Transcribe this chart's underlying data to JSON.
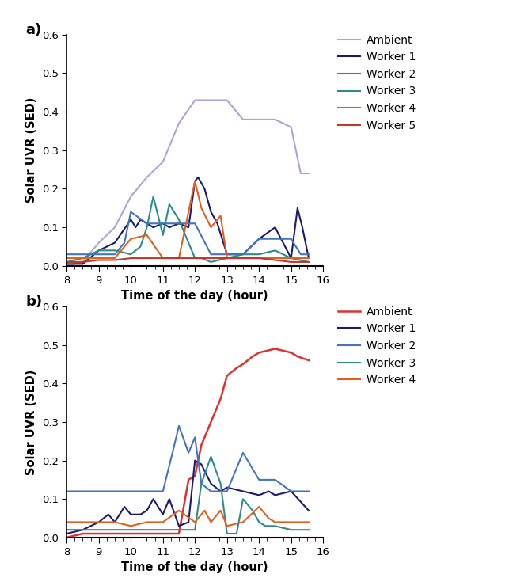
{
  "panel_a": {
    "ambient": {
      "x": [
        8.0,
        8.5,
        9.0,
        9.5,
        10.0,
        10.5,
        11.0,
        11.5,
        12.0,
        12.25,
        12.5,
        13.0,
        13.5,
        14.0,
        14.5,
        15.0,
        15.3,
        15.55
      ],
      "y": [
        0.0,
        0.01,
        0.06,
        0.1,
        0.18,
        0.23,
        0.27,
        0.37,
        0.43,
        0.43,
        0.43,
        0.43,
        0.38,
        0.38,
        0.38,
        0.36,
        0.24,
        0.24
      ],
      "color": "#b3a0d4",
      "label": "Ambient",
      "lw": 1.5
    },
    "worker1": {
      "x": [
        8.0,
        8.5,
        9.0,
        9.5,
        10.0,
        10.15,
        10.3,
        10.5,
        10.7,
        11.0,
        11.2,
        11.5,
        11.8,
        12.0,
        12.1,
        12.3,
        12.5,
        12.7,
        13.0,
        13.5,
        14.0,
        14.5,
        15.0,
        15.2,
        15.35,
        15.55
      ],
      "y": [
        0.005,
        0.005,
        0.04,
        0.06,
        0.12,
        0.1,
        0.12,
        0.11,
        0.1,
        0.11,
        0.1,
        0.11,
        0.1,
        0.22,
        0.23,
        0.2,
        0.14,
        0.11,
        0.03,
        0.03,
        0.07,
        0.1,
        0.02,
        0.15,
        0.1,
        0.02
      ],
      "color": "#1a1a6e",
      "label": "Worker 1",
      "lw": 1.5
    },
    "worker2": {
      "x": [
        8.0,
        8.5,
        9.0,
        9.5,
        9.8,
        10.0,
        10.5,
        11.0,
        11.3,
        11.5,
        12.0,
        12.5,
        13.0,
        13.5,
        14.0,
        14.3,
        14.5,
        15.0,
        15.3,
        15.55
      ],
      "y": [
        0.03,
        0.03,
        0.03,
        0.03,
        0.06,
        0.14,
        0.11,
        0.11,
        0.11,
        0.11,
        0.11,
        0.03,
        0.03,
        0.03,
        0.07,
        0.07,
        0.07,
        0.07,
        0.03,
        0.03
      ],
      "color": "#4472c4",
      "label": "Worker 2",
      "lw": 1.5
    },
    "worker3": {
      "x": [
        8.0,
        8.5,
        9.0,
        9.5,
        10.0,
        10.3,
        10.5,
        10.7,
        11.0,
        11.2,
        11.5,
        11.8,
        12.0,
        12.2,
        12.5,
        13.0,
        13.5,
        14.0,
        14.5,
        15.0,
        15.55
      ],
      "y": [
        0.01,
        0.02,
        0.04,
        0.04,
        0.03,
        0.05,
        0.1,
        0.18,
        0.08,
        0.16,
        0.12,
        0.06,
        0.02,
        0.02,
        0.01,
        0.02,
        0.03,
        0.03,
        0.04,
        0.02,
        0.01
      ],
      "color": "#2e8b8b",
      "label": "Worker 3",
      "lw": 1.5
    },
    "worker4": {
      "x": [
        8.0,
        8.5,
        9.0,
        9.5,
        10.0,
        10.5,
        11.0,
        11.5,
        12.0,
        12.2,
        12.5,
        12.8,
        13.0,
        13.5,
        14.0,
        14.5,
        15.0,
        15.55
      ],
      "y": [
        0.02,
        0.02,
        0.02,
        0.02,
        0.07,
        0.08,
        0.02,
        0.02,
        0.22,
        0.15,
        0.1,
        0.13,
        0.02,
        0.02,
        0.02,
        0.02,
        0.02,
        0.02
      ],
      "color": "#e06020",
      "label": "Worker 4",
      "lw": 1.5
    },
    "worker5": {
      "x": [
        8.0,
        8.5,
        9.0,
        9.5,
        10.0,
        10.5,
        11.0,
        11.5,
        12.0,
        12.5,
        13.0,
        13.5,
        14.0,
        14.5,
        15.0,
        15.55
      ],
      "y": [
        0.01,
        0.01,
        0.015,
        0.015,
        0.02,
        0.02,
        0.02,
        0.02,
        0.02,
        0.02,
        0.02,
        0.02,
        0.02,
        0.015,
        0.01,
        0.01
      ],
      "color": "#c0392b",
      "label": "Worker 5",
      "lw": 1.5
    }
  },
  "panel_b": {
    "ambient": {
      "x": [
        8.0,
        8.5,
        9.0,
        9.5,
        10.0,
        10.5,
        11.0,
        11.5,
        11.8,
        12.0,
        12.2,
        12.5,
        12.8,
        13.0,
        13.3,
        13.5,
        13.8,
        14.0,
        14.5,
        15.0,
        15.2,
        15.55
      ],
      "y": [
        0.0,
        0.01,
        0.01,
        0.01,
        0.01,
        0.01,
        0.01,
        0.01,
        0.15,
        0.16,
        0.24,
        0.3,
        0.36,
        0.42,
        0.44,
        0.45,
        0.47,
        0.48,
        0.49,
        0.48,
        0.47,
        0.46
      ],
      "color": "#e03030",
      "label": "Ambient",
      "lw": 1.8
    },
    "worker1": {
      "x": [
        8.0,
        8.5,
        9.0,
        9.3,
        9.5,
        9.8,
        10.0,
        10.3,
        10.5,
        10.7,
        11.0,
        11.2,
        11.5,
        11.8,
        12.0,
        12.2,
        12.5,
        12.8,
        13.0,
        13.5,
        14.0,
        14.3,
        14.5,
        15.0,
        15.55
      ],
      "y": [
        0.01,
        0.02,
        0.04,
        0.06,
        0.04,
        0.08,
        0.06,
        0.06,
        0.07,
        0.1,
        0.06,
        0.1,
        0.03,
        0.04,
        0.2,
        0.19,
        0.14,
        0.12,
        0.13,
        0.12,
        0.11,
        0.12,
        0.11,
        0.12,
        0.07
      ],
      "color": "#1a1a6e",
      "label": "Worker 1",
      "lw": 1.5
    },
    "worker2": {
      "x": [
        8.0,
        8.5,
        9.0,
        9.5,
        10.0,
        10.5,
        11.0,
        11.3,
        11.5,
        11.8,
        12.0,
        12.2,
        12.5,
        13.0,
        13.5,
        14.0,
        14.5,
        15.0,
        15.3,
        15.55
      ],
      "y": [
        0.12,
        0.12,
        0.12,
        0.12,
        0.12,
        0.12,
        0.12,
        0.22,
        0.29,
        0.22,
        0.26,
        0.14,
        0.12,
        0.12,
        0.22,
        0.15,
        0.15,
        0.12,
        0.12,
        0.12
      ],
      "color": "#4472c4",
      "label": "Worker 2",
      "lw": 1.5
    },
    "worker3": {
      "x": [
        8.0,
        8.5,
        9.0,
        9.5,
        10.0,
        10.5,
        11.0,
        11.5,
        12.0,
        12.2,
        12.5,
        12.8,
        13.0,
        13.3,
        13.5,
        13.8,
        14.0,
        14.2,
        14.5,
        15.0,
        15.55
      ],
      "y": [
        0.02,
        0.02,
        0.02,
        0.02,
        0.02,
        0.02,
        0.02,
        0.02,
        0.02,
        0.14,
        0.21,
        0.14,
        0.01,
        0.01,
        0.1,
        0.07,
        0.04,
        0.03,
        0.03,
        0.02,
        0.02
      ],
      "color": "#2e8b8b",
      "label": "Worker 3",
      "lw": 1.5
    },
    "worker4": {
      "x": [
        8.0,
        8.5,
        9.0,
        9.5,
        10.0,
        10.5,
        11.0,
        11.5,
        12.0,
        12.3,
        12.5,
        12.8,
        13.0,
        13.5,
        14.0,
        14.3,
        14.5,
        15.0,
        15.3,
        15.55
      ],
      "y": [
        0.04,
        0.04,
        0.04,
        0.04,
        0.03,
        0.04,
        0.04,
        0.07,
        0.04,
        0.07,
        0.04,
        0.07,
        0.03,
        0.04,
        0.08,
        0.05,
        0.04,
        0.04,
        0.04,
        0.04
      ],
      "color": "#e06020",
      "label": "Worker 4",
      "lw": 1.5
    }
  },
  "xlabel": "Time of the day (hour)",
  "ylabel": "Solar UVR (SED)",
  "xlim": [
    8,
    16
  ],
  "xticks": [
    8,
    9,
    10,
    11,
    12,
    13,
    14,
    15,
    16
  ],
  "ylim": [
    0,
    0.6
  ],
  "yticks": [
    0.0,
    0.1,
    0.2,
    0.3,
    0.4,
    0.5,
    0.6
  ],
  "panel_a_order": [
    "ambient",
    "worker1",
    "worker2",
    "worker3",
    "worker4",
    "worker5"
  ],
  "panel_b_order": [
    "ambient",
    "worker1",
    "worker2",
    "worker3",
    "worker4"
  ],
  "label_a": "a)",
  "label_b": "b)"
}
